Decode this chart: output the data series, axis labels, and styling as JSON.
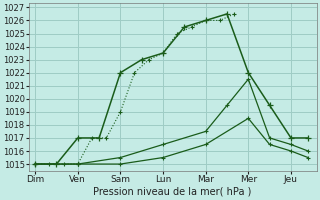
{
  "xlabel": "Pression niveau de la mer( hPa )",
  "background_color": "#c5ebe5",
  "grid_color": "#9eccc5",
  "line_color": "#1a5c1a",
  "ylim_min": 1014.5,
  "ylim_max": 1027.3,
  "yticks": [
    1015,
    1016,
    1017,
    1018,
    1019,
    1020,
    1021,
    1022,
    1023,
    1024,
    1025,
    1026,
    1027
  ],
  "x_labels": [
    "Dim",
    "Ven",
    "Sam",
    "Lun",
    "Mar",
    "Mer",
    "Jeu"
  ],
  "x_positions": [
    0,
    1,
    2,
    3,
    4,
    5,
    6
  ],
  "xlim_min": -0.15,
  "xlim_max": 6.6,
  "series_dotted_x": [
    0,
    0.33,
    0.67,
    1.0,
    1.33,
    1.67,
    2.0,
    2.33,
    2.67,
    3.0,
    3.33,
    3.67,
    4.0,
    4.33,
    4.67
  ],
  "series_dotted_y": [
    1015,
    1015,
    1015,
    1015,
    1017,
    1017,
    1019,
    1022,
    1023,
    1023.5,
    1025,
    1025.5,
    1026,
    1026,
    1026.5
  ],
  "series_main_x": [
    0,
    0.5,
    1.0,
    1.5,
    2.0,
    2.5,
    3.0,
    3.5,
    4.0,
    4.5,
    5.0,
    5.5,
    6.0,
    6.4
  ],
  "series_main_y": [
    1015,
    1015,
    1017,
    1017,
    1022,
    1023,
    1023.5,
    1025.5,
    1026,
    1026.5,
    1022,
    1019.5,
    1017,
    1017
  ],
  "series_line1_x": [
    0,
    1.0,
    2.0,
    3.0,
    4.0,
    4.5,
    5.0,
    5.5,
    6.0,
    6.4
  ],
  "series_line1_y": [
    1015,
    1015,
    1015.5,
    1016.5,
    1017.5,
    1019.5,
    1021.5,
    1017,
    1016.5,
    1016
  ],
  "series_line2_x": [
    0,
    1.0,
    2.0,
    3.0,
    4.0,
    5.0,
    5.5,
    6.0,
    6.4
  ],
  "series_line2_y": [
    1015,
    1015,
    1015,
    1015.5,
    1016.5,
    1018.5,
    1016.5,
    1016,
    1015.5
  ]
}
